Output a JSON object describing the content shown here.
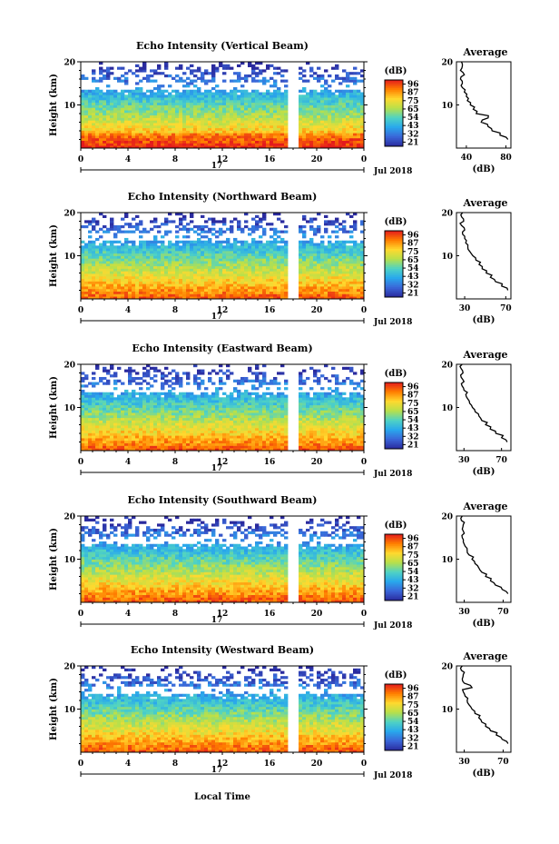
{
  "figure": {
    "x_axis_label": "Local Time",
    "date_label": "Jul 2018",
    "day_label": "17",
    "colorbar_unit": "(dB)",
    "colorbar_ticks": [
      "96",
      "87",
      "75",
      "65",
      "54",
      "43",
      "32",
      "21"
    ],
    "colorbar_colors": [
      "#e41a1c",
      "#ff7f00",
      "#ffd92f",
      "#b8e04a",
      "#4fd3c4",
      "#29a8ec",
      "#3a66d8",
      "#2a2a9e"
    ],
    "height_label": "Height (km)",
    "avg_title": "Average",
    "avg_xlabel": "(dB)"
  },
  "chart_data": [
    {
      "type": "heatmap",
      "title": "Echo Intensity (Vertical Beam)",
      "xlabel": "Local Time",
      "ylabel": "Height (km)",
      "xlim": [
        0,
        24
      ],
      "ylim": [
        0,
        20
      ],
      "x_ticks": [
        "0",
        "4",
        "8",
        "12",
        "16",
        "20",
        "0"
      ],
      "y_ticks": [
        "10",
        "20"
      ],
      "data_gap_hours": [
        17.6,
        18.6
      ],
      "colorbar": {
        "unit": "(dB)",
        "ticks": [
          "96",
          "87",
          "75",
          "65",
          "54",
          "43",
          "32",
          "21"
        ]
      },
      "profile": {
        "title": "Average",
        "xlabel": "(dB)",
        "xlim": [
          30,
          85
        ],
        "x_ticks": [
          "40",
          "80"
        ],
        "y_ticks": [
          "10",
          "20"
        ],
        "height_km": [
          2,
          3,
          4,
          5,
          6,
          7,
          8,
          9,
          10,
          11,
          12,
          13,
          14,
          15,
          16,
          17,
          18,
          19,
          20
        ],
        "db": [
          82,
          74,
          66,
          62,
          55,
          62,
          50,
          47,
          44,
          41,
          40,
          38,
          36,
          36,
          34,
          38,
          34,
          36,
          35
        ]
      }
    },
    {
      "type": "heatmap",
      "title": "Echo Intensity (Northward Beam)",
      "xlabel": "Local Time",
      "ylabel": "Height (km)",
      "xlim": [
        0,
        24
      ],
      "ylim": [
        0,
        20
      ],
      "x_ticks": [
        "0",
        "4",
        "8",
        "12",
        "16",
        "20",
        "0"
      ],
      "y_ticks": [
        "10",
        "20"
      ],
      "data_gap_hours": [
        17.6,
        18.6
      ],
      "colorbar": {
        "unit": "(dB)",
        "ticks": [
          "96",
          "87",
          "75",
          "65",
          "54",
          "43",
          "32",
          "21"
        ]
      },
      "profile": {
        "title": "Average",
        "xlabel": "(dB)",
        "xlim": [
          22,
          75
        ],
        "x_ticks": [
          "30",
          "70"
        ],
        "y_ticks": [
          "10",
          "20"
        ],
        "height_km": [
          2,
          3,
          4,
          5,
          6,
          7,
          8,
          9,
          10,
          11,
          12,
          13,
          14,
          15,
          16,
          17,
          18,
          19,
          20
        ],
        "db": [
          72,
          66,
          60,
          55,
          51,
          47,
          44,
          41,
          38,
          35,
          33,
          31,
          30,
          28,
          30,
          27,
          29,
          27,
          28
        ]
      }
    },
    {
      "type": "heatmap",
      "title": "Echo Intensity (Eastward Beam)",
      "xlabel": "Local Time",
      "ylabel": "Height (km)",
      "xlim": [
        0,
        24
      ],
      "ylim": [
        0,
        20
      ],
      "x_ticks": [
        "0",
        "4",
        "8",
        "12",
        "16",
        "20",
        "0"
      ],
      "y_ticks": [
        "10",
        "20"
      ],
      "data_gap_hours": [
        17.6,
        18.6
      ],
      "colorbar": {
        "unit": "(dB)",
        "ticks": [
          "96",
          "87",
          "75",
          "65",
          "54",
          "43",
          "32",
          "21"
        ]
      },
      "profile": {
        "title": "Average",
        "xlabel": "(dB)",
        "xlim": [
          22,
          80
        ],
        "x_ticks": [
          "30",
          "70"
        ],
        "y_ticks": [
          "10",
          "20"
        ],
        "height_km": [
          2,
          3,
          4,
          5,
          6,
          7,
          8,
          9,
          10,
          11,
          12,
          13,
          14,
          15,
          16,
          17,
          18,
          19,
          20
        ],
        "db": [
          76,
          70,
          64,
          58,
          53,
          49,
          46,
          42,
          39,
          36,
          34,
          32,
          30,
          28,
          30,
          27,
          29,
          27,
          28
        ]
      }
    },
    {
      "type": "heatmap",
      "title": "Echo Intensity (Southward Beam)",
      "xlabel": "Local Time",
      "ylabel": "Height (km)",
      "xlim": [
        0,
        24
      ],
      "ylim": [
        0,
        20
      ],
      "x_ticks": [
        "0",
        "4",
        "8",
        "12",
        "16",
        "20",
        "0"
      ],
      "y_ticks": [
        "10",
        "20"
      ],
      "data_gap_hours": [
        17.6,
        18.6
      ],
      "colorbar": {
        "unit": "(dB)",
        "ticks": [
          "96",
          "87",
          "75",
          "65",
          "54",
          "43",
          "32",
          "21"
        ]
      },
      "profile": {
        "title": "Average",
        "xlabel": "(dB)",
        "xlim": [
          22,
          78
        ],
        "x_ticks": [
          "30",
          "70"
        ],
        "y_ticks": [
          "10",
          "20"
        ],
        "height_km": [
          2,
          3,
          4,
          5,
          6,
          7,
          8,
          9,
          10,
          11,
          12,
          13,
          14,
          15,
          16,
          17,
          18,
          19,
          20
        ],
        "db": [
          75,
          69,
          62,
          57,
          52,
          48,
          45,
          41,
          38,
          35,
          33,
          31,
          29,
          28,
          30,
          28,
          29,
          27,
          28
        ]
      }
    },
    {
      "type": "heatmap",
      "title": "Echo Intensity (Westward Beam)",
      "xlabel": "Local Time",
      "ylabel": "Height (km)",
      "xlim": [
        0,
        24
      ],
      "ylim": [
        0,
        20
      ],
      "x_ticks": [
        "0",
        "4",
        "8",
        "12",
        "16",
        "20",
        "0"
      ],
      "y_ticks": [
        "10",
        "20"
      ],
      "data_gap_hours": [
        17.6,
        18.6
      ],
      "colorbar": {
        "unit": "(dB)",
        "ticks": [
          "96",
          "87",
          "75",
          "65",
          "54",
          "43",
          "32",
          "21"
        ]
      },
      "profile": {
        "title": "Average",
        "xlabel": "(dB)",
        "xlim": [
          22,
          78
        ],
        "x_ticks": [
          "30",
          "70"
        ],
        "y_ticks": [
          "10",
          "20"
        ],
        "height_km": [
          2,
          3,
          4,
          5,
          6,
          7,
          8,
          9,
          10,
          11,
          12,
          13,
          14,
          15,
          16,
          17,
          18,
          19,
          20
        ],
        "db": [
          75,
          69,
          63,
          57,
          52,
          48,
          45,
          41,
          38,
          35,
          33,
          31,
          29,
          38,
          30,
          28,
          29,
          27,
          28
        ]
      }
    }
  ]
}
